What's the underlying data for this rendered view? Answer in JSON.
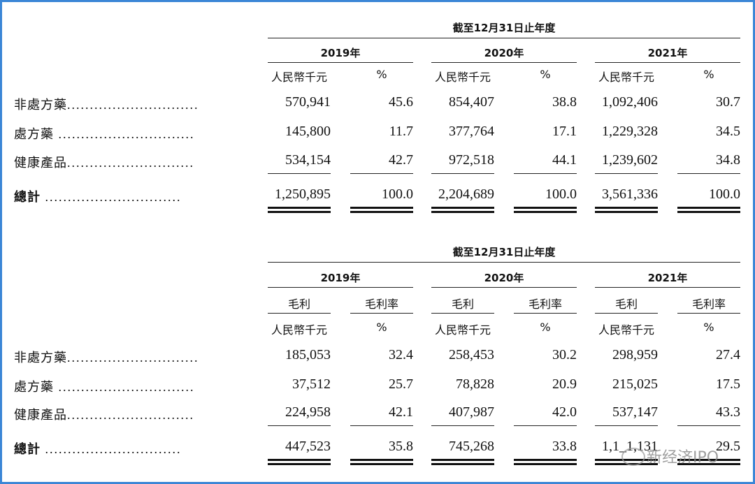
{
  "table1": {
    "period_header": "截至12月31日止年度",
    "years": [
      "2019年",
      "2020年",
      "2021年"
    ],
    "unit_headers": [
      "人民幣千元",
      "%",
      "人民幣千元",
      "%",
      "人民幣千元",
      "%"
    ],
    "rows": [
      {
        "label": "非處方藥",
        "dots": ".............................",
        "values": [
          "570,941",
          "45.6",
          "854,407",
          "38.8",
          "1,092,406",
          "30.7"
        ]
      },
      {
        "label": "處方藥",
        "dots": " ..............................",
        "values": [
          "145,800",
          "11.7",
          "377,764",
          "17.1",
          "1,229,328",
          "34.5"
        ]
      },
      {
        "label": "健康產品",
        "dots": "............................",
        "values": [
          "534,154",
          "42.7",
          "972,518",
          "44.1",
          "1,239,602",
          "34.8"
        ]
      }
    ],
    "total": {
      "label": "總計",
      "dots": " ..............................",
      "values": [
        "1,250,895",
        "100.0",
        "2,204,689",
        "100.0",
        "3,561,336",
        "100.0"
      ]
    }
  },
  "table2": {
    "period_header": "截至12月31日止年度",
    "years": [
      "2019年",
      "2020年",
      "2021年"
    ],
    "metric_headers": [
      "毛利",
      "毛利率",
      "毛利",
      "毛利率",
      "毛利",
      "毛利率"
    ],
    "unit_headers": [
      "人民幣千元",
      "%",
      "人民幣千元",
      "%",
      "人民幣千元",
      "%"
    ],
    "rows": [
      {
        "label": "非處方藥",
        "dots": ".............................",
        "values": [
          "185,053",
          "32.4",
          "258,453",
          "30.2",
          "298,959",
          "27.4"
        ]
      },
      {
        "label": "處方藥",
        "dots": " ..............................",
        "values": [
          "37,512",
          "25.7",
          "78,828",
          "20.9",
          "215,025",
          "17.5"
        ]
      },
      {
        "label": "健康產品",
        "dots": "............................",
        "values": [
          "224,958",
          "42.1",
          "407,987",
          "42.0",
          "537,147",
          "43.3"
        ]
      }
    ],
    "total": {
      "label": "總計",
      "dots": " ..............................",
      "values": [
        "447,523",
        "35.8",
        "745,268",
        "33.8",
        "1,1_1,131",
        "29.5"
      ]
    }
  },
  "watermark": {
    "text": "新经济IPO",
    "icon": "wechat-icon"
  },
  "colors": {
    "border": "#3b86d6"
  }
}
